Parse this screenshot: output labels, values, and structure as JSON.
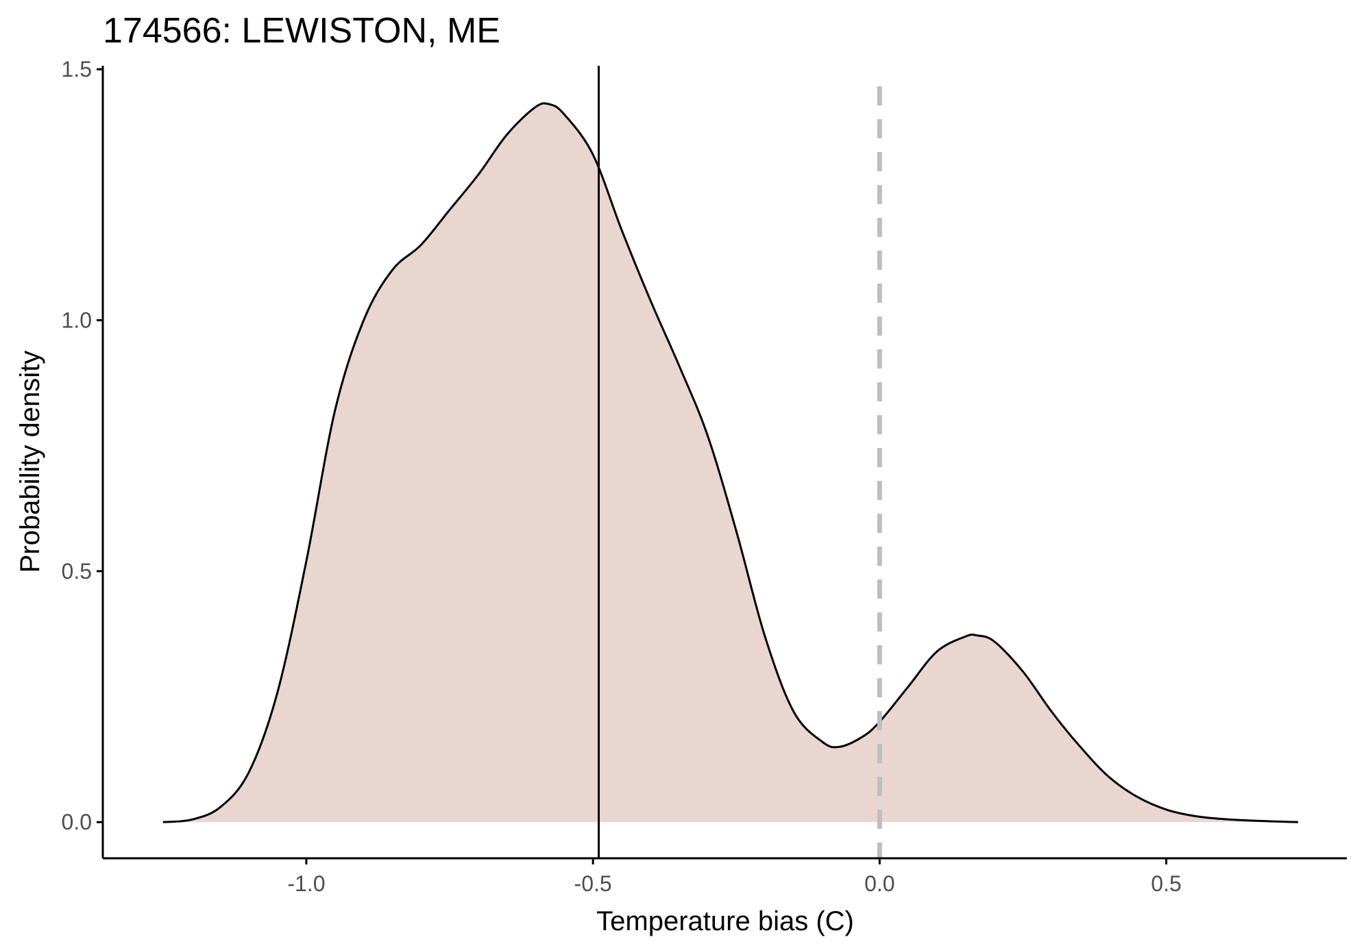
{
  "chart_data": {
    "type": "area",
    "title": "174566: LEWISTON, ME",
    "xlabel": "Temperature bias (C)",
    "ylabel": "Probability density",
    "xlim": [
      -1.355,
      0.815
    ],
    "ylim": [
      -0.072,
      1.507
    ],
    "x_ticks": [
      -1.0,
      -0.5,
      0.0,
      0.5
    ],
    "x_tick_labels": [
      "-1.0",
      "-0.5",
      "0.0",
      "0.5"
    ],
    "y_ticks": [
      0.0,
      0.5,
      1.0,
      1.5
    ],
    "y_tick_labels": [
      "0.0",
      "0.5",
      "1.0",
      "1.5"
    ],
    "grid": false,
    "legend": "none",
    "fill_color": "#e9d6d0",
    "line_color": "#000000",
    "series": [
      {
        "x": [
          -1.25,
          -1.2,
          -1.15,
          -1.1,
          -1.05,
          -1.0,
          -0.95,
          -0.9,
          -0.85,
          -0.8,
          -0.75,
          -0.7,
          -0.65,
          -0.6,
          -0.575,
          -0.55,
          -0.5,
          -0.45,
          -0.4,
          -0.35,
          -0.3,
          -0.25,
          -0.2,
          -0.15,
          -0.1,
          -0.07,
          -0.03,
          0.0,
          0.05,
          0.1,
          0.15,
          0.17,
          0.2,
          0.25,
          0.3,
          0.35,
          0.4,
          0.45,
          0.5,
          0.55,
          0.6,
          0.65,
          0.7,
          0.73
        ],
        "y": [
          0.0,
          0.005,
          0.03,
          0.1,
          0.26,
          0.52,
          0.82,
          1.0,
          1.1,
          1.15,
          1.22,
          1.29,
          1.37,
          1.425,
          1.43,
          1.41,
          1.33,
          1.18,
          1.04,
          0.91,
          0.77,
          0.58,
          0.37,
          0.22,
          0.16,
          0.15,
          0.17,
          0.2,
          0.27,
          0.34,
          0.37,
          0.372,
          0.36,
          0.3,
          0.22,
          0.15,
          0.09,
          0.05,
          0.025,
          0.012,
          0.006,
          0.003,
          0.001,
          0.0
        ]
      }
    ],
    "reference_lines": [
      {
        "axis": "x",
        "value": -0.49,
        "style": "solid",
        "color": "#000000"
      },
      {
        "axis": "x",
        "value": 0.0,
        "style": "dashed",
        "color": "#bebebe"
      }
    ]
  }
}
